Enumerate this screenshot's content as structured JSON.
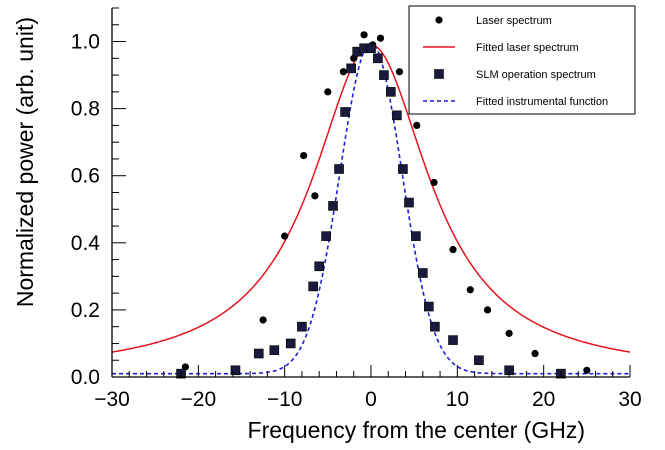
{
  "chart_data": {
    "type": "scatter",
    "xlabel": "Frequency from the center (GHz)",
    "ylabel": "Normalized power (arb. unit)",
    "xlim": [
      -30,
      30
    ],
    "ylim": [
      0,
      1.1
    ],
    "x_ticks": [
      {
        "value": -30,
        "label": "−30"
      },
      {
        "value": -20,
        "label": "−20"
      },
      {
        "value": -10,
        "label": "−10"
      },
      {
        "value": 0,
        "label": "0"
      },
      {
        "value": 10,
        "label": "10"
      },
      {
        "value": 20,
        "label": "20"
      },
      {
        "value": 30,
        "label": "30"
      }
    ],
    "y_ticks": [
      {
        "value": 0.0,
        "label": "0.0"
      },
      {
        "value": 0.2,
        "label": "0.2"
      },
      {
        "value": 0.4,
        "label": "0.4"
      },
      {
        "value": 0.6,
        "label": "0.6"
      },
      {
        "value": 0.8,
        "label": "0.8"
      },
      {
        "value": 1.0,
        "label": "1.0"
      }
    ],
    "grid": false,
    "legend_position": "top-right",
    "series": [
      {
        "name": "Laser spectrum",
        "kind": "points",
        "marker": "circle",
        "color": "#000000",
        "x": [
          -21.5,
          -12.5,
          -10.0,
          -7.8,
          -6.5,
          -5.0,
          -3.2,
          -2.0,
          -0.8,
          0.2,
          1.1,
          3.3,
          5.3,
          7.3,
          9.5,
          11.5,
          13.5,
          16.0,
          19.0,
          25.0
        ],
        "y": [
          0.03,
          0.17,
          0.42,
          0.66,
          0.54,
          0.85,
          0.91,
          0.95,
          1.02,
          0.99,
          1.01,
          0.91,
          0.75,
          0.58,
          0.38,
          0.26,
          0.2,
          0.13,
          0.07,
          0.02
        ]
      },
      {
        "name": "Fitted laser spectrum",
        "kind": "curve",
        "color": "#e8141c",
        "dash": "solid",
        "function": "lorentzian",
        "center": 0,
        "amplitude": 0.985,
        "fwhm": 16.5,
        "baseline": 0.005
      },
      {
        "name": "SLM operation spectrum",
        "kind": "points",
        "marker": "square",
        "color": "#000000",
        "fill": "#1a1a3c",
        "x": [
          -22.0,
          -15.7,
          -13.0,
          -11.2,
          -9.3,
          -8.0,
          -6.7,
          -6.0,
          -5.2,
          -4.4,
          -3.7,
          -3.0,
          -2.3,
          -1.6,
          -0.8,
          0.0,
          0.8,
          1.5,
          2.3,
          3.0,
          3.7,
          4.4,
          5.2,
          6.0,
          6.7,
          7.4,
          9.5,
          12.5,
          16.0,
          22.0
        ],
        "y": [
          0.01,
          0.02,
          0.07,
          0.08,
          0.1,
          0.15,
          0.27,
          0.33,
          0.42,
          0.51,
          0.62,
          0.79,
          0.92,
          0.97,
          0.98,
          0.98,
          0.95,
          0.9,
          0.85,
          0.78,
          0.62,
          0.52,
          0.42,
          0.31,
          0.21,
          0.15,
          0.11,
          0.05,
          0.02,
          0.01
        ]
      },
      {
        "name": "Fitted instrumental function",
        "kind": "curve",
        "color": "#1f1fd6",
        "dash": "dashed",
        "function": "gaussian",
        "center": 0,
        "amplitude": 0.985,
        "fwhm": 8.5,
        "baseline": 0.01
      }
    ]
  }
}
